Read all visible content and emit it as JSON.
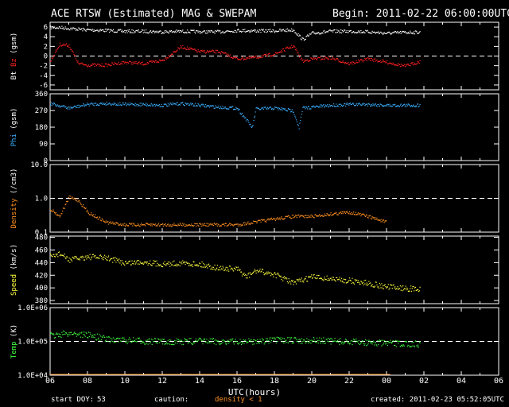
{
  "header": {
    "title": "ACE RTSW (Estimated) MAG & SWEPAM",
    "begin": "Begin: 2011-02-22 06:00:00UTC"
  },
  "footer": {
    "start_doy_label": "start DOY:",
    "start_doy": "53",
    "caution": "caution:",
    "density_note": "density < 1",
    "created": "created: 2011-02-23 05:52:05UTC"
  },
  "colors": {
    "bt": "#ffffff",
    "bz": "#ff2020",
    "phi": "#3ab0ff",
    "density": "#ff9020",
    "speed": "#ffff40",
    "temp": "#40ff40",
    "axes": "#ffffff",
    "background": "#000000"
  },
  "chart_data": [
    {
      "type": "scatter",
      "panel": "Bt/Bz",
      "ylabel_parts": [
        "Bt",
        "Bz",
        "(gsm)"
      ],
      "yticks": [
        "6",
        "4",
        "2",
        "0",
        "-2",
        "-4",
        "-6"
      ],
      "ylim": [
        -7,
        7
      ],
      "reference_line": 0,
      "series": [
        {
          "name": "Bt",
          "x": [
            6,
            6.5,
            7,
            8,
            9,
            10,
            11,
            12,
            13,
            14,
            15,
            16,
            17,
            18,
            19,
            19.5,
            20,
            21,
            22,
            23,
            24,
            25,
            25.8
          ],
          "y": [
            6,
            6,
            5.8,
            5.5,
            5.4,
            5.2,
            5.2,
            5.1,
            5.2,
            5.1,
            5.1,
            5.4,
            5.3,
            5.3,
            5.5,
            3.5,
            4.8,
            5.2,
            5.2,
            5.1,
            4.8,
            5,
            5
          ]
        },
        {
          "name": "Bz",
          "x": [
            6,
            6.5,
            7,
            7.5,
            8,
            9,
            10,
            11,
            12,
            13,
            14,
            15,
            16,
            17,
            18,
            19,
            19.5,
            20,
            21,
            22,
            23,
            24,
            25,
            25.8
          ],
          "y": [
            -1,
            2.5,
            2.3,
            -1.5,
            -1.8,
            -1.8,
            -1.2,
            -1.5,
            -0.8,
            2,
            1,
            1,
            -0.5,
            -0.2,
            0.5,
            2.2,
            -1,
            -0.5,
            -0.3,
            -1.5,
            -0.5,
            -1.2,
            -2,
            -1
          ]
        }
      ]
    },
    {
      "type": "scatter",
      "panel": "Phi",
      "ylabel_parts": [
        "Phi",
        "(gsm)"
      ],
      "yticks": [
        "360",
        "270",
        "180",
        "90",
        "0"
      ],
      "ylim": [
        0,
        360
      ],
      "series": [
        {
          "name": "Phi",
          "x": [
            6,
            7,
            8,
            9,
            10,
            11,
            12,
            13,
            14,
            15,
            16,
            16.5,
            16.8,
            17,
            18,
            19,
            19.3,
            19.5,
            20,
            21,
            22,
            23,
            24,
            25,
            25.8
          ],
          "y": [
            310,
            285,
            305,
            310,
            305,
            305,
            300,
            310,
            300,
            290,
            285,
            220,
            180,
            280,
            285,
            270,
            180,
            285,
            290,
            300,
            305,
            305,
            300,
            300,
            300
          ]
        }
      ]
    },
    {
      "type": "scatter",
      "panel": "Density",
      "ylabel_parts": [
        "Density",
        "(/cm3)"
      ],
      "yticks": [
        "10.0",
        "1.0",
        "0.1"
      ],
      "yscale": "log",
      "ylim": [
        0.1,
        10
      ],
      "reference_line": 1.0,
      "series": [
        {
          "name": "Density",
          "x": [
            6,
            6.5,
            7,
            7.5,
            8,
            9,
            10,
            12,
            14,
            16,
            18,
            19,
            20,
            21,
            22,
            23,
            24
          ],
          "y": [
            0.5,
            0.3,
            1.1,
            0.9,
            0.4,
            0.2,
            0.17,
            0.17,
            0.17,
            0.17,
            0.25,
            0.3,
            0.3,
            0.35,
            0.4,
            0.3,
            0.2
          ]
        }
      ]
    },
    {
      "type": "scatter",
      "panel": "Speed",
      "ylabel_parts": [
        "Speed",
        "(km/s)"
      ],
      "yticks": [
        "480",
        "460",
        "440",
        "420",
        "400",
        "380"
      ],
      "ylim": [
        375,
        482
      ],
      "series": [
        {
          "name": "Speed",
          "x": [
            6,
            6.5,
            7,
            8,
            9,
            10,
            11,
            12,
            13,
            14,
            15,
            16,
            16.5,
            17,
            18,
            19,
            20,
            21,
            22,
            23,
            24,
            25,
            25.8
          ],
          "y": [
            450,
            455,
            445,
            450,
            448,
            440,
            442,
            438,
            440,
            438,
            432,
            430,
            418,
            428,
            422,
            408,
            418,
            415,
            412,
            408,
            402,
            400,
            398
          ]
        }
      ]
    },
    {
      "type": "scatter",
      "panel": "Temp",
      "ylabel_parts": [
        "Temp",
        "(K)"
      ],
      "yticks": [
        "1.0E+06",
        "1.0E+05",
        "1.0E+04"
      ],
      "yscale": "log",
      "ylim": [
        10000,
        1000000
      ],
      "reference_line": 100000,
      "series": [
        {
          "name": "Temp",
          "x": [
            6,
            7,
            8,
            9,
            10,
            12,
            14,
            16,
            18,
            20,
            22,
            24,
            25.8
          ],
          "y": [
            150000,
            180000,
            160000,
            120000,
            110000,
            100000,
            105000,
            100000,
            110000,
            110000,
            100000,
            90000,
            85000
          ]
        }
      ]
    }
  ],
  "x_axis": {
    "label": "UTC(hours)",
    "ticks": [
      "06",
      "08",
      "10",
      "12",
      "14",
      "16",
      "18",
      "20",
      "22",
      "00",
      "02",
      "04",
      "06"
    ],
    "range": [
      6,
      30
    ]
  }
}
